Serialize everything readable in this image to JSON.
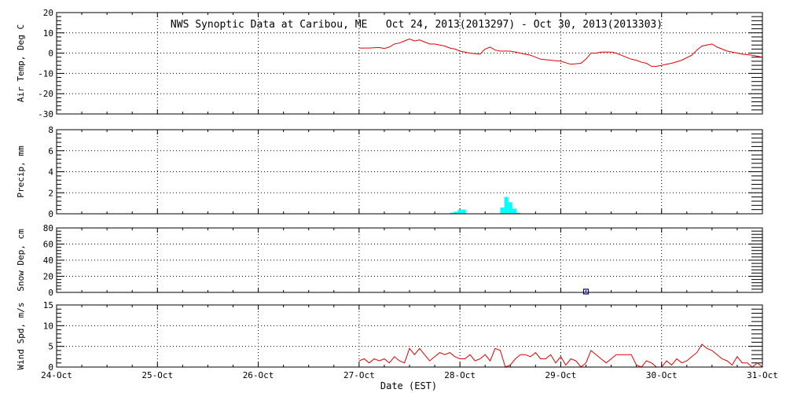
{
  "chart_data": {
    "type": "line",
    "title": "NWS Synoptic Data at Caribou, ME   Oct 24, 2013(2013297) - Oct 30, 2013(2013303)",
    "xlabel": "Date (EST)",
    "x_range": [
      "24-Oct",
      "31-Oct"
    ],
    "x_tick_labels": [
      "24-Oct",
      "25-Oct",
      "26-Oct",
      "27-Oct",
      "28-Oct",
      "29-Oct",
      "30-Oct",
      "31-Oct"
    ],
    "grid": true,
    "panels": [
      {
        "id": "temp",
        "ylabel": "Air Temp, Deg C",
        "type": "line",
        "ylim": [
          -30,
          20
        ],
        "yticks": [
          -30,
          -20,
          -10,
          0,
          10,
          20
        ],
        "color": "#e00000",
        "series": [
          {
            "x": [
              3.0,
              3.1,
              3.2,
              3.25,
              3.3,
              3.35,
              3.4,
              3.45,
              3.5,
              3.55,
              3.6,
              3.65,
              3.7,
              3.75,
              3.8,
              3.85,
              3.9,
              3.95,
              4.0,
              4.1,
              4.2,
              4.25,
              4.3,
              4.35,
              4.4,
              4.45,
              4.5,
              4.55,
              4.6,
              4.7,
              4.8,
              4.9,
              5.0,
              5.1,
              5.2,
              5.25,
              5.3,
              5.35,
              5.4,
              5.45,
              5.5,
              5.55,
              5.6,
              5.65,
              5.7,
              5.75,
              5.8,
              5.85,
              5.9,
              5.95,
              6.0,
              6.05,
              6.1,
              6.2,
              6.3,
              6.35,
              6.4,
              6.45,
              6.5,
              6.55,
              6.6,
              6.65,
              6.7,
              6.8,
              6.9,
              6.95,
              7.0
            ],
            "y": [
              2.5,
              2.5,
              2.8,
              2.3,
              3.0,
              4.5,
              5.0,
              6.0,
              7.0,
              6.0,
              6.5,
              5.5,
              4.5,
              4.5,
              4.0,
              3.5,
              2.5,
              2.0,
              1.0,
              0.0,
              -0.5,
              2.0,
              3.0,
              1.5,
              1.0,
              1.0,
              1.0,
              0.5,
              0.0,
              -1.0,
              -3.0,
              -3.5,
              -4.0,
              -5.5,
              -5.0,
              -3.0,
              0.0,
              0.0,
              0.5,
              0.5,
              0.5,
              0.0,
              -1.0,
              -2.0,
              -3.0,
              -3.5,
              -4.5,
              -5.0,
              -6.5,
              -6.5,
              -6.0,
              -5.5,
              -5.0,
              -3.5,
              -1.0,
              1.5,
              3.5,
              4.0,
              4.5,
              3.0,
              2.0,
              1.0,
              0.5,
              -0.5,
              -1.0,
              -1.5,
              -2.0
            ]
          }
        ]
      },
      {
        "id": "precip",
        "ylabel": "Precip, mm",
        "type": "bar",
        "ylim": [
          0,
          8
        ],
        "yticks": [
          0,
          2,
          4,
          6,
          8
        ],
        "color": "#00ffff",
        "bars": [
          {
            "x": 3.92,
            "value": 0.1
          },
          {
            "x": 3.96,
            "value": 0.2
          },
          {
            "x": 4.0,
            "value": 0.4
          },
          {
            "x": 4.04,
            "value": 0.4
          },
          {
            "x": 4.42,
            "value": 0.6
          },
          {
            "x": 4.46,
            "value": 1.6
          },
          {
            "x": 4.5,
            "value": 1.1
          },
          {
            "x": 4.54,
            "value": 0.5
          },
          {
            "x": 4.58,
            "value": 0.1
          }
        ]
      },
      {
        "id": "snow",
        "ylabel": "Snow Dep, cm",
        "type": "scatter",
        "ylim": [
          0,
          80
        ],
        "yticks": [
          0,
          20,
          40,
          60,
          80
        ],
        "color": "#00008b",
        "points": [
          {
            "x": 5.25,
            "y": 1
          }
        ]
      },
      {
        "id": "wind",
        "ylabel": "Wind Spd, m/s",
        "type": "line",
        "ylim": [
          0,
          15
        ],
        "yticks": [
          0,
          5,
          10,
          15
        ],
        "color": "#e00000",
        "series": [
          {
            "x": [
              3.0,
              3.05,
              3.1,
              3.15,
              3.2,
              3.25,
              3.3,
              3.35,
              3.4,
              3.45,
              3.5,
              3.55,
              3.6,
              3.65,
              3.7,
              3.75,
              3.8,
              3.85,
              3.9,
              3.95,
              4.0,
              4.05,
              4.1,
              4.15,
              4.2,
              4.25,
              4.3,
              4.35,
              4.4,
              4.45,
              4.5,
              4.55,
              4.6,
              4.65,
              4.7,
              4.75,
              4.8,
              4.85,
              4.9,
              4.95,
              5.0,
              5.05,
              5.1,
              5.15,
              5.2,
              5.25,
              5.3,
              5.35,
              5.4,
              5.45,
              5.5,
              5.55,
              5.6,
              5.65,
              5.7,
              5.75,
              5.8,
              5.85,
              5.9,
              5.95,
              6.0,
              6.05,
              6.1,
              6.15,
              6.2,
              6.25,
              6.3,
              6.35,
              6.4,
              6.45,
              6.5,
              6.55,
              6.6,
              6.65,
              6.7,
              6.75,
              6.8,
              6.85,
              6.9,
              6.95,
              7.0
            ],
            "y": [
              1.5,
              2.0,
              1.0,
              2.0,
              1.5,
              2.0,
              1.0,
              2.5,
              1.5,
              1.0,
              4.5,
              3.0,
              4.5,
              3.0,
              1.5,
              2.5,
              3.5,
              3.0,
              3.5,
              2.5,
              2.0,
              2.0,
              3.0,
              1.5,
              2.0,
              3.0,
              1.5,
              4.5,
              4.0,
              0.0,
              0.5,
              2.0,
              3.0,
              3.0,
              2.5,
              3.5,
              2.0,
              2.0,
              3.0,
              1.0,
              2.5,
              0.5,
              2.0,
              1.5,
              0.0,
              1.0,
              4.0,
              3.0,
              2.0,
              1.0,
              2.0,
              3.0,
              3.0,
              3.0,
              3.0,
              0.5,
              0.0,
              1.5,
              1.0,
              0.0,
              0.0,
              1.5,
              0.5,
              2.0,
              1.0,
              1.5,
              2.5,
              3.5,
              5.5,
              4.5,
              4.0,
              3.0,
              2.0,
              1.5,
              0.5,
              2.5,
              1.0,
              1.0,
              0.0,
              1.0,
              0.0
            ]
          }
        ]
      }
    ]
  }
}
